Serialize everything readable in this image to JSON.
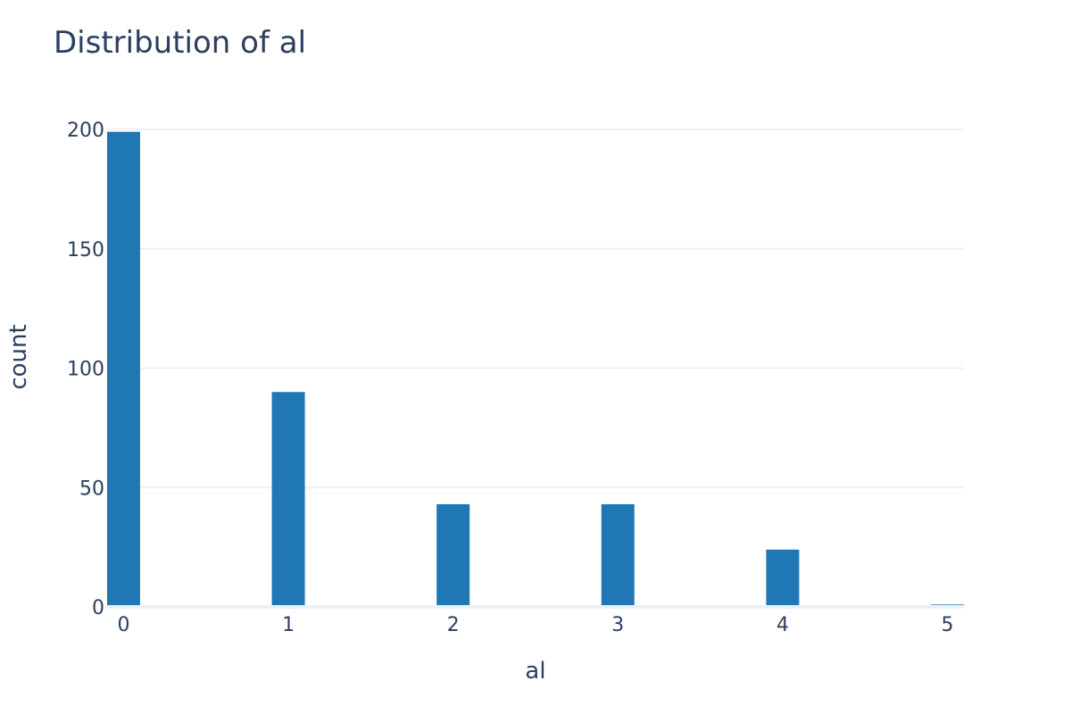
{
  "chart_data": {
    "type": "bar",
    "title": "Distribution of al",
    "xlabel": "al",
    "ylabel": "count",
    "categories": [
      0,
      1,
      2,
      3,
      4,
      5
    ],
    "values": [
      199,
      90,
      43,
      43,
      24,
      1
    ],
    "xlim": [
      -0.1,
      5.1
    ],
    "ylim": [
      0,
      200
    ],
    "xticks": [
      "0",
      "1",
      "2",
      "3",
      "4",
      "5"
    ],
    "yticks": [
      "0",
      "50",
      "100",
      "150",
      "200"
    ],
    "ytick_values": [
      0,
      50,
      100,
      150,
      200
    ],
    "bar_color": "#1f77b4",
    "grid": true,
    "legend": false
  }
}
